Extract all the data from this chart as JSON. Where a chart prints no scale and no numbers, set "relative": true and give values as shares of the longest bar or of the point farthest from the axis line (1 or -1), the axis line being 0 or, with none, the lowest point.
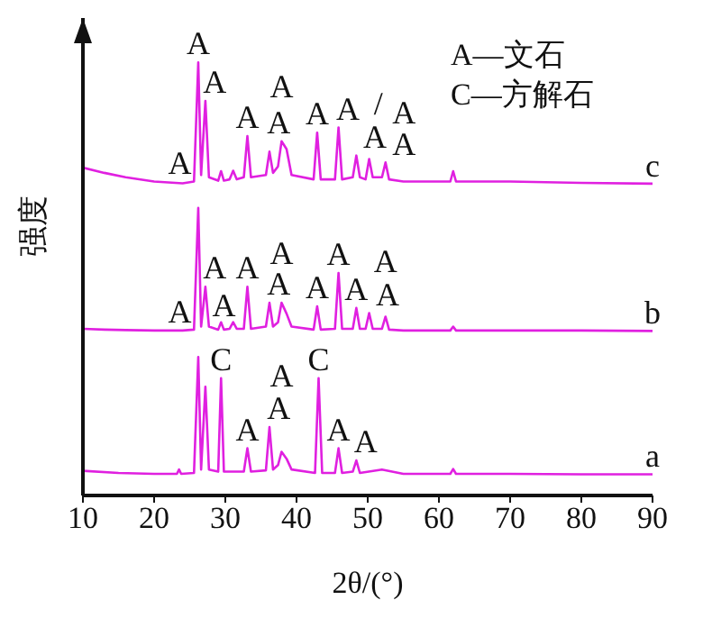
{
  "chart_data": {
    "type": "line",
    "relative": true,
    "xlabel": "2θ/(°)",
    "ylabel": "强度",
    "xlim": [
      10,
      90
    ],
    "xticks": [
      10,
      20,
      30,
      40,
      50,
      60,
      70,
      80,
      90
    ],
    "marker": "none",
    "line_style": "solid",
    "series": [
      {
        "name": "c",
        "color": "#e020e0",
        "x": [
          10,
          13,
          16,
          20,
          24,
          25.6,
          26.2,
          26.6,
          27.2,
          27.7,
          29.0,
          29.4,
          29.8,
          30.6,
          31.1,
          31.6,
          32.6,
          33.1,
          33.6,
          35.7,
          36.2,
          36.7,
          37.4,
          37.9,
          38.6,
          39.3,
          42.4,
          42.9,
          43.4,
          45.4,
          45.9,
          46.4,
          47.9,
          48.4,
          48.9,
          49.7,
          50.2,
          50.7,
          52.0,
          52.5,
          53.0,
          55,
          61.6,
          62,
          62.4,
          70,
          80,
          90
        ],
        "values": [
          0.757,
          0.745,
          0.735,
          0.725,
          0.721,
          0.725,
          1.0,
          0.74,
          0.911,
          0.735,
          0.727,
          0.749,
          0.727,
          0.73,
          0.75,
          0.73,
          0.735,
          0.83,
          0.735,
          0.74,
          0.794,
          0.745,
          0.76,
          0.818,
          0.8,
          0.74,
          0.73,
          0.838,
          0.73,
          0.73,
          0.85,
          0.73,
          0.735,
          0.785,
          0.735,
          0.73,
          0.777,
          0.735,
          0.735,
          0.769,
          0.73,
          0.725,
          0.725,
          0.749,
          0.725,
          0.725,
          0.722,
          0.72
        ]
      },
      {
        "name": "b",
        "color": "#e020e0",
        "x": [
          10,
          13,
          16,
          20,
          24,
          25.6,
          26.2,
          26.6,
          27.2,
          27.7,
          29.0,
          29.4,
          29.8,
          30.6,
          31.1,
          31.6,
          32.6,
          33.1,
          33.6,
          35.7,
          36.2,
          36.7,
          37.4,
          37.9,
          38.6,
          39.3,
          42.4,
          42.9,
          43.4,
          45.4,
          45.9,
          46.4,
          47.9,
          48.4,
          48.9,
          49.7,
          50.2,
          50.7,
          52.0,
          52.5,
          53.0,
          55,
          61.6,
          62,
          62.4,
          70,
          80,
          90
        ],
        "values": [
          0.385,
          0.383,
          0.382,
          0.381,
          0.381,
          0.383,
          0.664,
          0.39,
          0.482,
          0.39,
          0.383,
          0.4,
          0.383,
          0.385,
          0.4,
          0.385,
          0.385,
          0.482,
          0.385,
          0.39,
          0.445,
          0.39,
          0.4,
          0.445,
          0.42,
          0.39,
          0.383,
          0.437,
          0.383,
          0.385,
          0.514,
          0.385,
          0.385,
          0.433,
          0.385,
          0.385,
          0.421,
          0.385,
          0.385,
          0.413,
          0.383,
          0.381,
          0.381,
          0.39,
          0.381,
          0.381,
          0.381,
          0.38
        ]
      },
      {
        "name": "a",
        "color": "#e020e0",
        "x": [
          10,
          15,
          20,
          23.2,
          23.5,
          23.8,
          25.6,
          26.2,
          26.6,
          27.2,
          27.7,
          29.0,
          29.4,
          29.8,
          32.6,
          33.1,
          33.6,
          35.7,
          36.2,
          36.7,
          37.4,
          37.9,
          38.6,
          39.3,
          42.6,
          43.1,
          43.6,
          45.4,
          45.9,
          46.4,
          47.9,
          48.4,
          48.9,
          52,
          55,
          61.6,
          62,
          62.4,
          70,
          80,
          90
        ],
        "values": [
          0.057,
          0.052,
          0.05,
          0.05,
          0.06,
          0.05,
          0.052,
          0.32,
          0.06,
          0.251,
          0.06,
          0.055,
          0.271,
          0.055,
          0.055,
          0.109,
          0.055,
          0.058,
          0.158,
          0.06,
          0.07,
          0.101,
          0.085,
          0.06,
          0.052,
          0.271,
          0.052,
          0.052,
          0.109,
          0.052,
          0.055,
          0.081,
          0.052,
          0.06,
          0.05,
          0.05,
          0.061,
          0.05,
          0.05,
          0.049,
          0.049
        ]
      }
    ],
    "annotations": [
      "A—文石",
      "C—方解石",
      {
        "text": "A",
        "x": 26.2,
        "y": 1.0
      },
      {
        "text": "A",
        "x": 27.2,
        "y": 0.911
      },
      {
        "text": "A",
        "x": 33.1,
        "y": 0.83
      },
      {
        "text": "A",
        "x": 36.2,
        "y": 0.794
      },
      {
        "text": "A",
        "x": 37.9,
        "y": 0.818
      },
      {
        "text": "A",
        "x": 42.9,
        "y": 0.838
      },
      {
        "text": "A",
        "x": 45.9,
        "y": 0.85
      },
      {
        "text": "A",
        "x": 48.4,
        "y": 0.785
      },
      {
        "text": "/",
        "x": 50.2,
        "y": 0.777
      },
      {
        "text": "A",
        "x": 52.5,
        "y": 0.769
      },
      {
        "text": "A",
        "x": 52.5,
        "y": 0.769
      },
      {
        "text": "A",
        "x": 26.2,
        "y": 0.664
      },
      {
        "text": "A",
        "x": 27.2,
        "y": 0.482
      },
      {
        "text": "A",
        "x": 33.1,
        "y": 0.482
      },
      {
        "text": "A",
        "x": 36.2,
        "y": 0.445
      },
      {
        "text": "A",
        "x": 37.9,
        "y": 0.445
      },
      {
        "text": "A",
        "x": 42.9,
        "y": 0.437
      },
      {
        "text": "A",
        "x": 45.9,
        "y": 0.514
      },
      {
        "text": "A",
        "x": 48.4,
        "y": 0.433
      },
      {
        "text": "A",
        "x": 50.2,
        "y": 0.421
      },
      {
        "text": "A",
        "x": 52.5,
        "y": 0.413
      },
      {
        "text": "A",
        "x": 26.2,
        "y": 0.32
      },
      {
        "text": "C",
        "x": 29.4,
        "y": 0.271
      },
      {
        "text": "A",
        "x": 27.2,
        "y": 0.251
      },
      {
        "text": "A",
        "x": 33.1,
        "y": 0.109
      },
      {
        "text": "A",
        "x": 36.2,
        "y": 0.158
      },
      {
        "text": "A",
        "x": 37.9,
        "y": 0.101
      },
      {
        "text": "C",
        "x": 43.1,
        "y": 0.271
      },
      {
        "text": "A",
        "x": 45.9,
        "y": 0.109
      },
      {
        "text": "A",
        "x": 48.4,
        "y": 0.081
      }
    ]
  }
}
